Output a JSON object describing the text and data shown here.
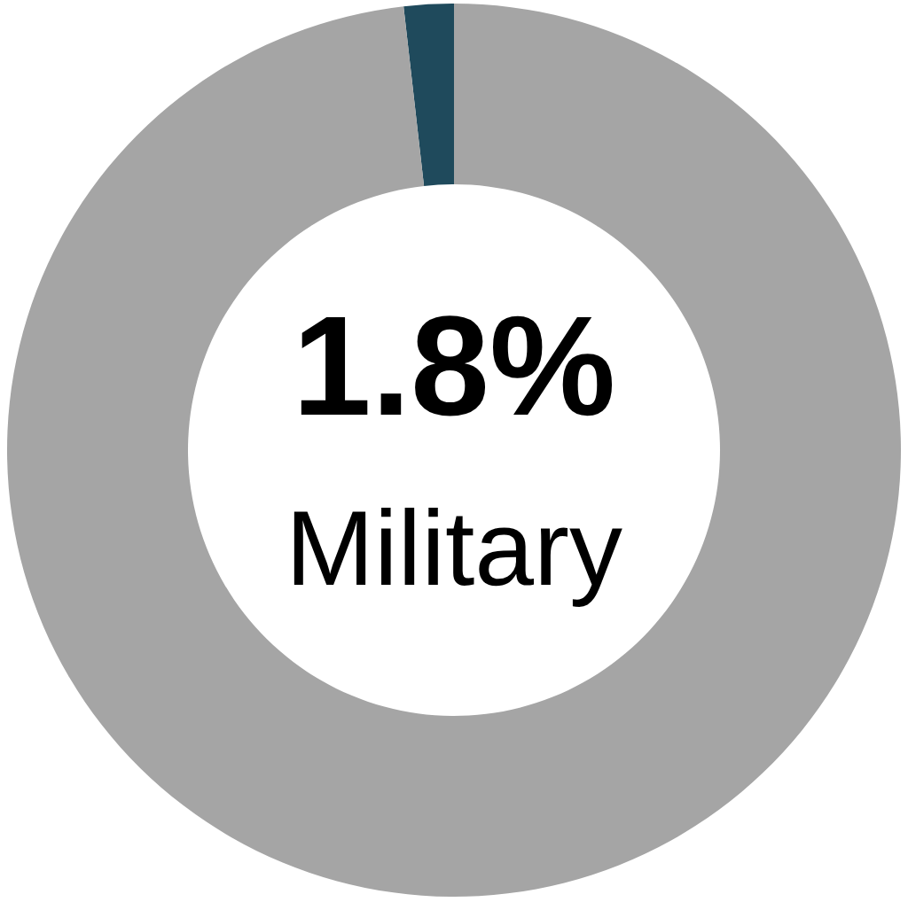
{
  "chart_data": {
    "type": "donut",
    "categories": [
      "Military",
      null
    ],
    "values": [
      1.8,
      98.2
    ],
    "colors": [
      "#1f4a5c",
      "#a5a5a5"
    ],
    "value_labels": [
      "1.8%",
      null
    ]
  }
}
